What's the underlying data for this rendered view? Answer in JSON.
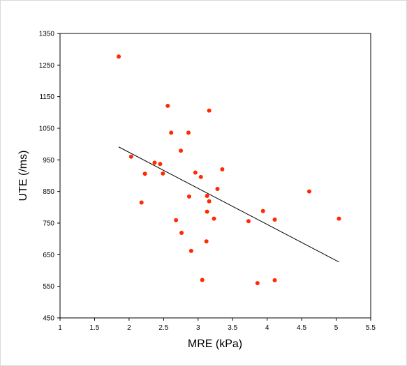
{
  "chart_data": {
    "type": "scatter",
    "title": "",
    "xlabel": "MRE (kPa)",
    "ylabel": "UTE (/ms)",
    "xlim": [
      1,
      5.5
    ],
    "ylim": [
      450,
      1350
    ],
    "xticks": [
      1,
      1.5,
      2,
      2.5,
      3,
      3.5,
      4,
      4.5,
      5,
      5.5
    ],
    "xtick_labels": [
      "1",
      "1.5",
      "2",
      "2.5",
      "3",
      "3.5",
      "4",
      "4.5",
      "5",
      "5.5"
    ],
    "yticks": [
      450,
      550,
      650,
      750,
      850,
      950,
      1050,
      1150,
      1250,
      1350
    ],
    "ytick_labels": [
      "450",
      "550",
      "650",
      "750",
      "850",
      "950",
      "1050",
      "1150",
      "1250",
      "1350"
    ],
    "grid": false,
    "legend": "none",
    "marker_color": "#ff2a00",
    "trendline_color": "#000000",
    "series": [
      {
        "points": [
          [
            1.85,
            1277
          ],
          [
            2.03,
            960
          ],
          [
            2.18,
            815
          ],
          [
            2.23,
            906
          ],
          [
            2.37,
            941
          ],
          [
            2.45,
            937
          ],
          [
            2.49,
            907
          ],
          [
            2.56,
            1121
          ],
          [
            2.61,
            1036
          ],
          [
            2.68,
            759
          ],
          [
            2.75,
            979
          ],
          [
            2.76,
            719
          ],
          [
            2.86,
            1036
          ],
          [
            2.87,
            834
          ],
          [
            2.9,
            662
          ],
          [
            2.96,
            910
          ],
          [
            3.04,
            896
          ],
          [
            3.06,
            570
          ],
          [
            3.12,
            692
          ],
          [
            3.13,
            786
          ],
          [
            3.13,
            836
          ],
          [
            3.16,
            819
          ],
          [
            3.16,
            1106
          ],
          [
            3.23,
            764
          ],
          [
            3.28,
            858
          ],
          [
            3.35,
            920
          ],
          [
            3.73,
            756
          ],
          [
            3.86,
            560
          ],
          [
            3.94,
            788
          ],
          [
            4.11,
            761
          ],
          [
            4.11,
            569
          ],
          [
            4.61,
            850
          ],
          [
            5.04,
            764
          ]
        ]
      }
    ],
    "trendline": {
      "x": [
        1.85,
        5.04
      ],
      "y": [
        991,
        627
      ]
    }
  }
}
